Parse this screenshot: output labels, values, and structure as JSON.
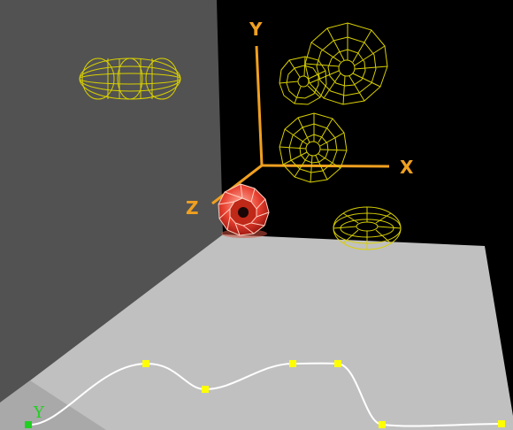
{
  "viewport": {
    "background_color": "#000000",
    "back_wall_color": "#525252",
    "floor_color": "#c0c0c0",
    "floor_shadow_color": "#a9a9a9"
  },
  "axes": {
    "color": "#f0a020",
    "x_label": "X",
    "y_label": "Y",
    "z_label": "Z"
  },
  "objects": [
    {
      "name": "capsule-wireframe",
      "kind": "wireframe",
      "color": "#d8d000"
    },
    {
      "name": "octagon-ring-large",
      "kind": "wireframe",
      "color": "#d8d000"
    },
    {
      "name": "octagon-ring-medium",
      "kind": "wireframe",
      "color": "#d8d000"
    },
    {
      "name": "octagon-ring-small",
      "kind": "wireframe",
      "color": "#d8d000"
    },
    {
      "name": "torus-flat",
      "kind": "wireframe",
      "color": "#d8d000"
    },
    {
      "name": "torus-selected",
      "kind": "shaded",
      "color": "#e23a2a"
    }
  ],
  "curve_editor": {
    "label": "Y",
    "label_color": "#20d020",
    "curve_color": "#ffffff",
    "key_color": "#ffff00",
    "start_key_color": "#20d020"
  }
}
